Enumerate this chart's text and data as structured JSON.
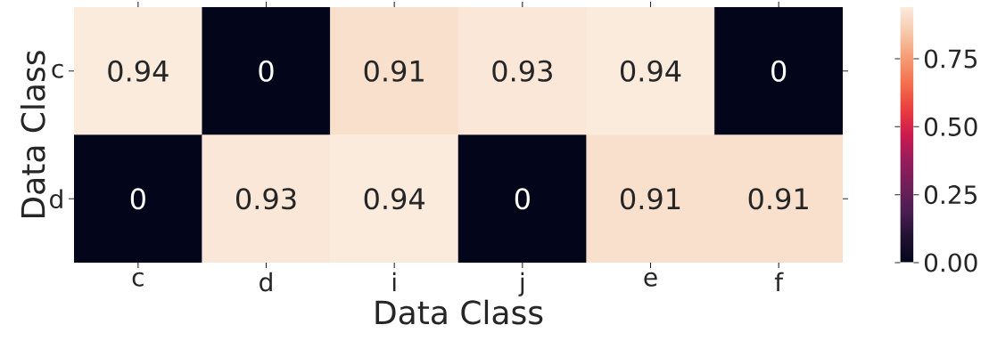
{
  "chart_data": {
    "type": "heatmap",
    "xlabel": "Data Class",
    "ylabel": "Data Class",
    "categories": [
      "c",
      "d",
      "i",
      "j",
      "e",
      "f"
    ],
    "y_categories": [
      "c",
      "d"
    ],
    "cells": [
      [
        0.94,
        0,
        0.91,
        0.93,
        0.94,
        0
      ],
      [
        0,
        0.93,
        0.94,
        0,
        0.91,
        0.91
      ]
    ],
    "data_labels": true,
    "clim": [
      0,
      0.94
    ],
    "cticks": [
      {
        "value": 0,
        "label": "0.00"
      },
      {
        "value": 0.25,
        "label": "0.25"
      },
      {
        "value": 0.5,
        "label": "0.50"
      },
      {
        "value": 0.75,
        "label": "0.75"
      }
    ]
  }
}
